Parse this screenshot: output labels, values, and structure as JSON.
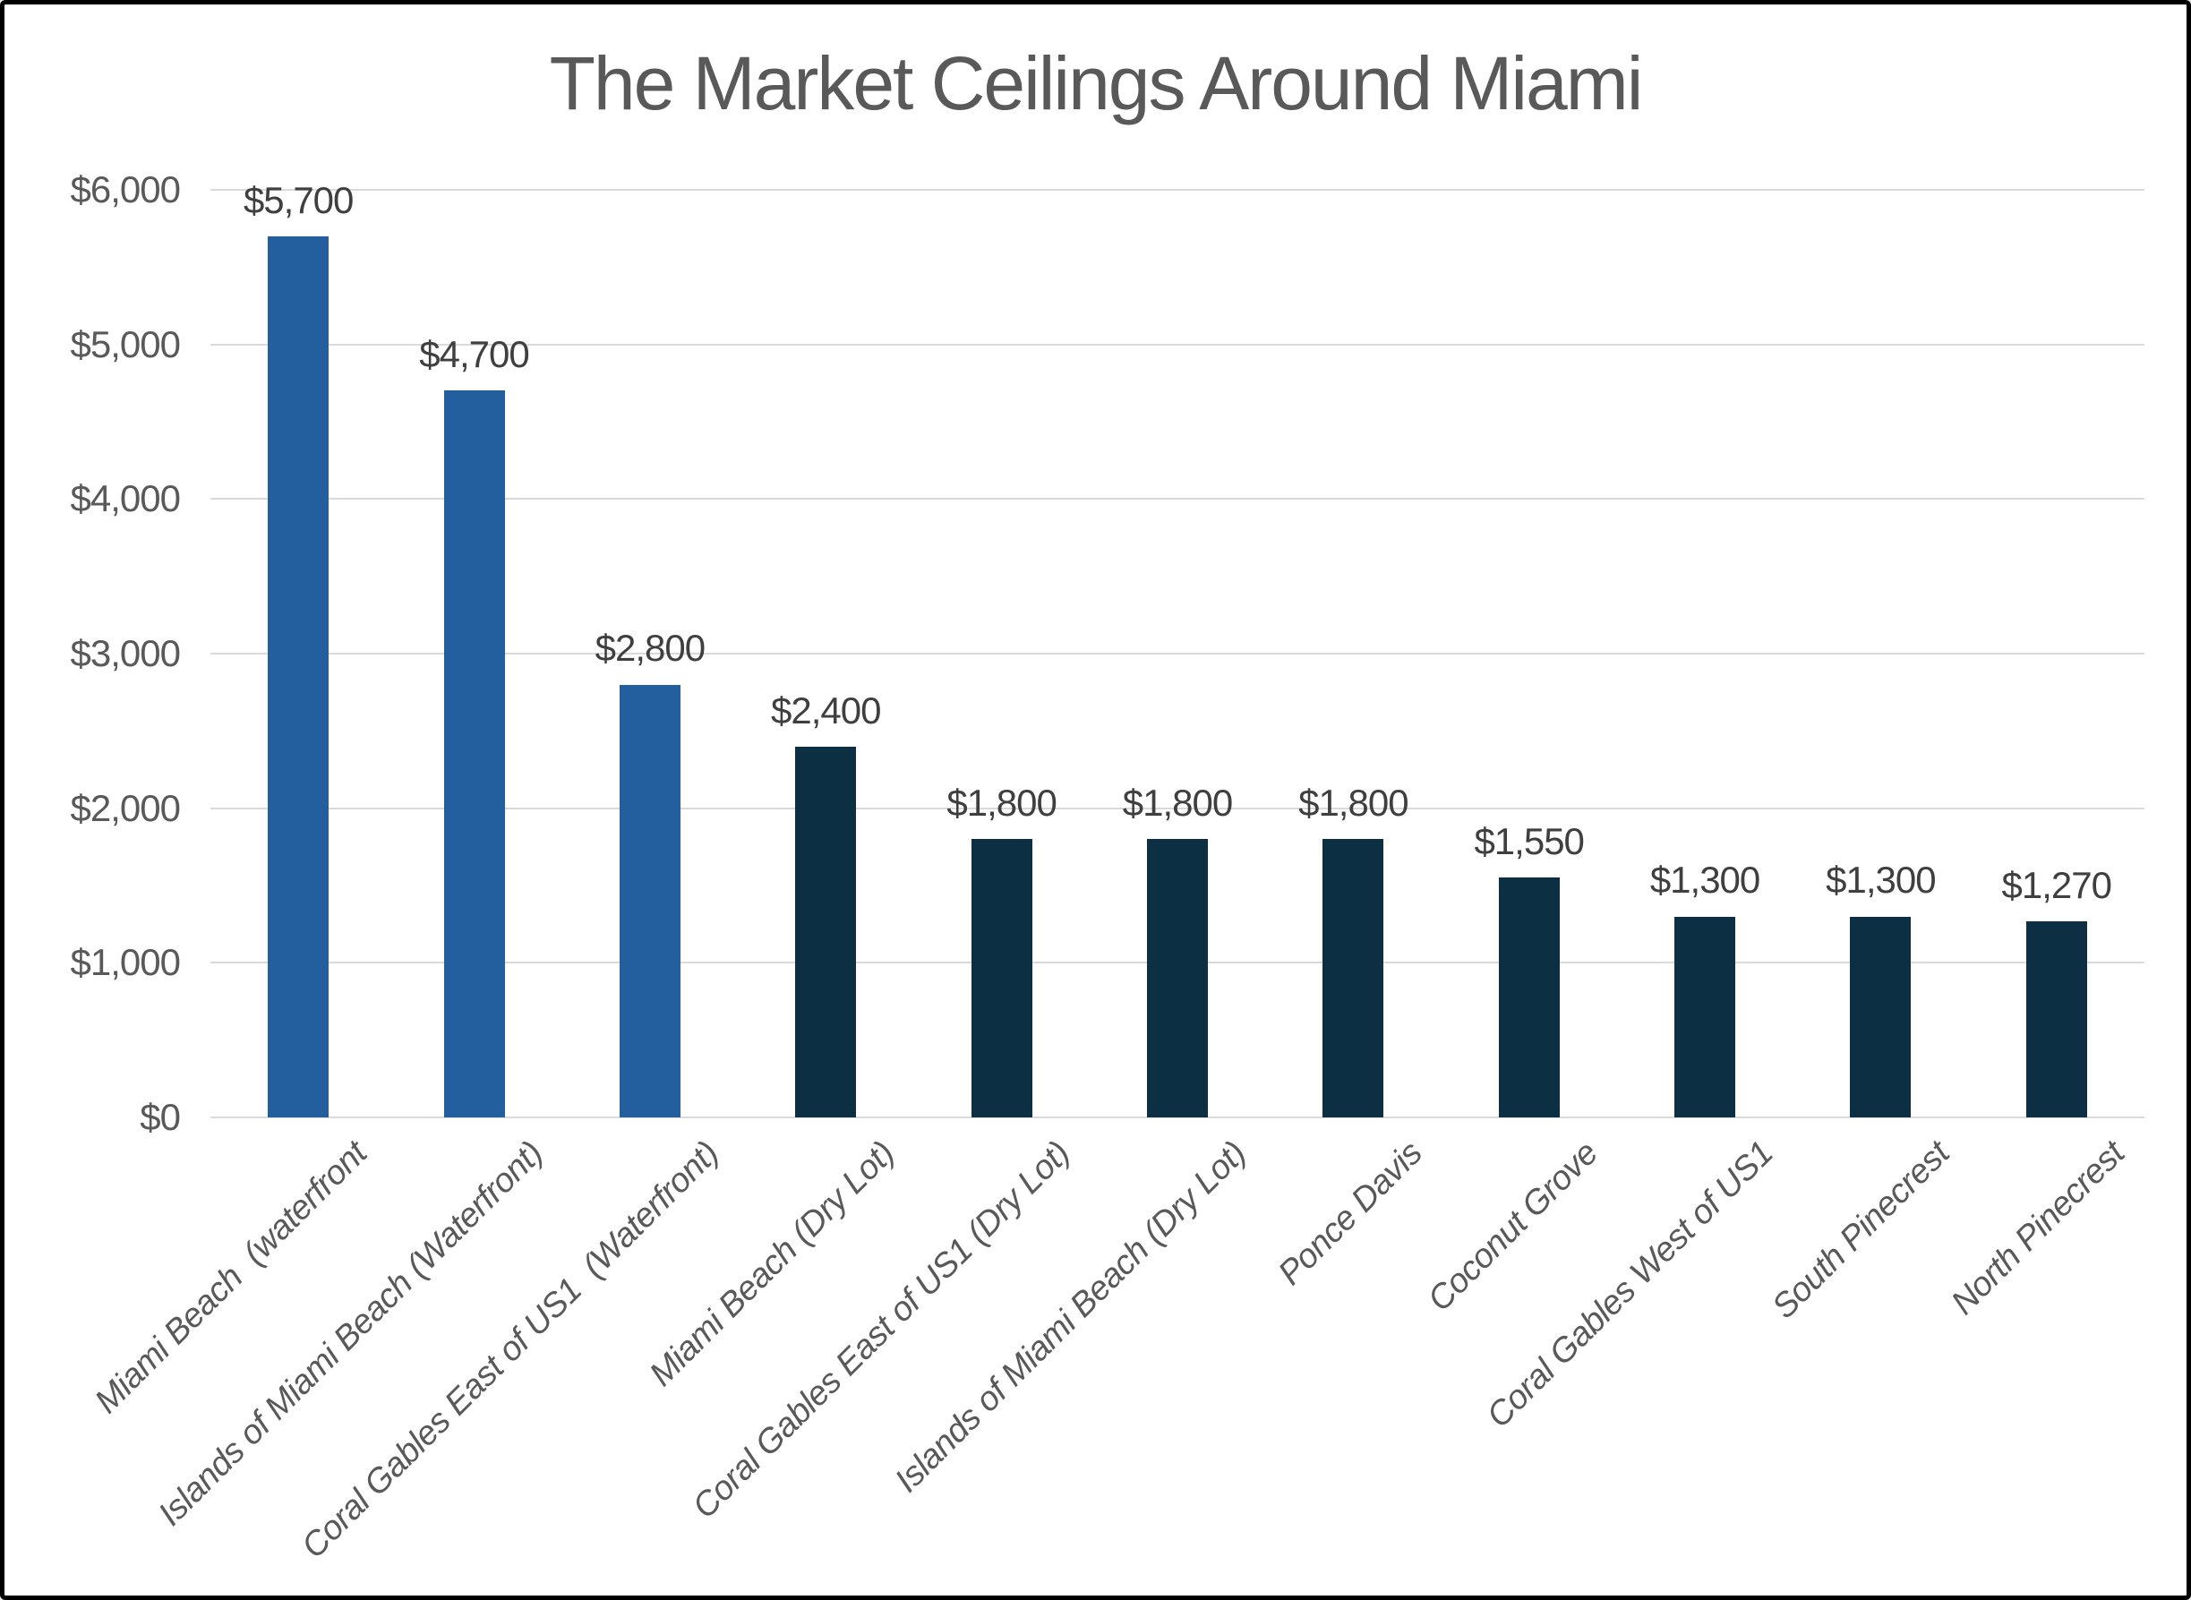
{
  "chart_data": {
    "type": "bar",
    "title": "The Market Ceilings Around Miami",
    "categories": [
      "Miami Beach  (waterfront",
      "Islands of Miami Beach (Waterfront)",
      "Coral Gables East of US1  (Waterfront)",
      "Miami Beach (Dry Lot)",
      "Coral Gables East of US1 (Dry Lot)",
      "Islands of Miami Beach (Dry Lot)",
      "Ponce Davis",
      "Coconut Grove",
      "Coral Gables West of US1",
      "South Pinecrest",
      "North Pinecrest"
    ],
    "values": [
      5700,
      4700,
      2800,
      2400,
      1800,
      1800,
      1800,
      1550,
      1300,
      1300,
      1270
    ],
    "data_labels": [
      "$5,700",
      "$4,700",
      "$2,800",
      "$2,400",
      "$1,800",
      "$1,800",
      "$1,800",
      "$1,550",
      "$1,300",
      "$1,300",
      "$1,270"
    ],
    "color_groups": [
      "blue",
      "blue",
      "blue",
      "navy",
      "navy",
      "navy",
      "navy",
      "navy",
      "navy",
      "navy",
      "navy"
    ],
    "y_ticks": [
      {
        "value": 6000,
        "label": "$6,000"
      },
      {
        "value": 5000,
        "label": "$5,000"
      },
      {
        "value": 4000,
        "label": "$4,000"
      },
      {
        "value": 3000,
        "label": "$3,000"
      },
      {
        "value": 2000,
        "label": "$2,000"
      },
      {
        "value": 1000,
        "label": "$1,000"
      },
      {
        "value": 0,
        "label": "$0"
      }
    ],
    "ylim": [
      0,
      6000
    ],
    "xlabel": "",
    "ylabel": "",
    "grid": true,
    "legend": "none"
  },
  "colors": {
    "waterfront_blue": "#235F9E",
    "dry_lot_navy": "#0D2F43",
    "gridline": "#DADADA",
    "axis_text": "#595959",
    "title_text": "#595959",
    "data_label_text": "#3F3F3F",
    "frame_border": "#000000",
    "background": "#FFFFFF"
  }
}
